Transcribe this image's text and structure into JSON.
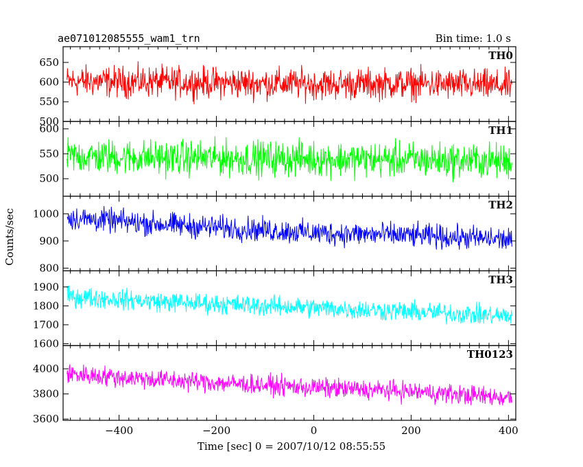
{
  "header": {
    "left_title": "ae071012085555_wam1_trn",
    "right_title": "Bin time: 1.0 s"
  },
  "chart_data": {
    "type": "line",
    "title": "ae071012085555_wam1_trn",
    "bin_time": "Bin time: 1.0 s",
    "xlabel": "Time [sec] 0 = 2007/10/12 08:55:55",
    "ylabel": "Counts/sec",
    "xlim": [
      -515,
      415
    ],
    "data_x_range": [
      -507,
      407
    ],
    "x_ticks": [
      -400,
      -200,
      0,
      200,
      400
    ],
    "x_tick_labels": [
      "−400",
      "−200",
      "0",
      "200",
      "400"
    ],
    "grid": false,
    "panels": [
      {
        "name": "TH0",
        "color": "#ff0000",
        "ylim": [
          500,
          690
        ],
        "y_ticks": [
          500,
          550,
          600,
          650
        ],
        "trend": [
          [
            -507,
            602
          ],
          [
            -300,
            600
          ],
          [
            0,
            595
          ],
          [
            200,
            596
          ],
          [
            407,
            590
          ]
        ],
        "noise_amplitude": 45
      },
      {
        "name": "TH1",
        "color": "#00ff00",
        "ylim": [
          465,
          615
        ],
        "y_ticks": [
          500,
          550,
          600
        ],
        "trend": [
          [
            -507,
            545
          ],
          [
            -300,
            542
          ],
          [
            0,
            540
          ],
          [
            200,
            538
          ],
          [
            407,
            535
          ]
        ],
        "noise_amplitude": 40
      },
      {
        "name": "TH2",
        "color": "#0000ff",
        "ylim": [
          790,
          1065
        ],
        "y_ticks": [
          800,
          900,
          1000
        ],
        "trend": [
          [
            -507,
            985
          ],
          [
            -300,
            960
          ],
          [
            0,
            930
          ],
          [
            200,
            920
          ],
          [
            407,
            905
          ]
        ],
        "noise_amplitude": 50
      },
      {
        "name": "TH3",
        "color": "#00ffff",
        "ylim": [
          1590,
          1985
        ],
        "y_ticks": [
          1600,
          1700,
          1800,
          1900
        ],
        "trend": [
          [
            -507,
            1850
          ],
          [
            -300,
            1820
          ],
          [
            0,
            1790
          ],
          [
            200,
            1770
          ],
          [
            407,
            1745
          ]
        ],
        "noise_amplitude": 60
      },
      {
        "name": "TH0123",
        "color": "#ff00ff",
        "ylim": [
          3590,
          4185
        ],
        "y_ticks": [
          3600,
          3800,
          4000
        ],
        "trend": [
          [
            -507,
            3960
          ],
          [
            -300,
            3910
          ],
          [
            0,
            3850
          ],
          [
            200,
            3820
          ],
          [
            407,
            3770
          ]
        ],
        "noise_amplitude": 90
      }
    ]
  }
}
